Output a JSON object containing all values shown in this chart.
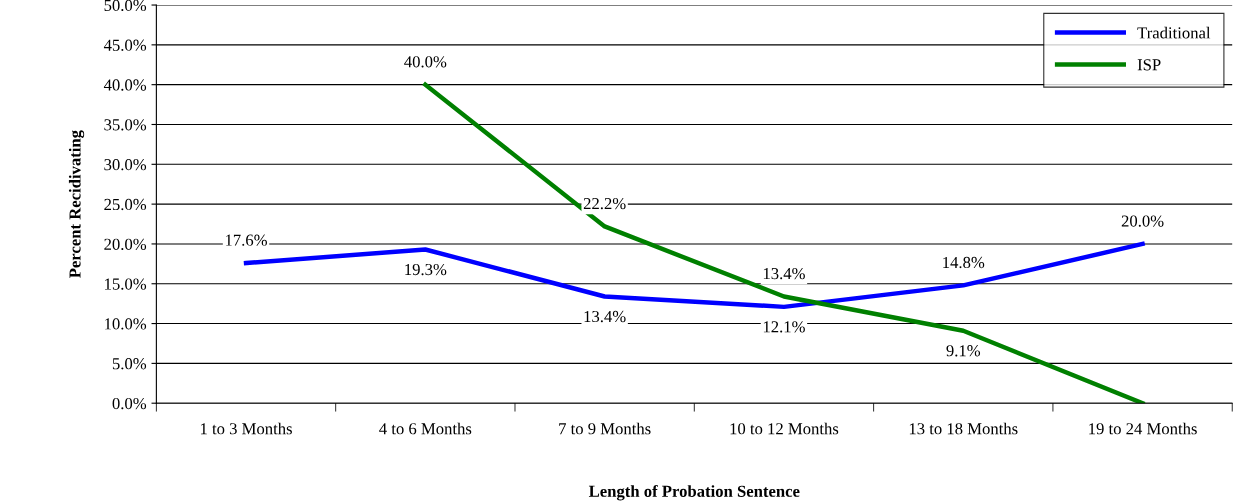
{
  "chart_data": {
    "type": "line",
    "xlabel": "Length of Probation Sentence",
    "ylabel": "Percent Recidivating",
    "categories": [
      "1 to 3 Months",
      "4 to 6 Months",
      "7 to 9 Months",
      "10 to 12 Months",
      "13 to 18 Months",
      "19 to 24 Months"
    ],
    "series": [
      {
        "name": "Traditional",
        "color": "#0000ff",
        "values": [
          17.6,
          19.3,
          13.4,
          12.1,
          14.8,
          20.0
        ],
        "value_labels": [
          "17.6%",
          "19.3%",
          "13.4%",
          "12.1%",
          "14.8%",
          "20.0%"
        ]
      },
      {
        "name": "ISP",
        "color": "#008000",
        "values": [
          null,
          40.0,
          22.2,
          13.4,
          9.1,
          0.0
        ],
        "value_labels": [
          null,
          "40.0%",
          "22.2%",
          "13.4%",
          "9.1%",
          null
        ]
      }
    ],
    "ylim": [
      0,
      50
    ],
    "yticks": [
      {
        "value": 0,
        "label": "0.0%"
      },
      {
        "value": 5,
        "label": "5.0%"
      },
      {
        "value": 10,
        "label": "10.0%"
      },
      {
        "value": 15,
        "label": "15.0%"
      },
      {
        "value": 20,
        "label": "20.0%"
      },
      {
        "value": 25,
        "label": "25.0%"
      },
      {
        "value": 30,
        "label": "30.0%"
      },
      {
        "value": 35,
        "label": "35.0%"
      },
      {
        "value": 40,
        "label": "40.0%"
      },
      {
        "value": 45,
        "label": "45.0%"
      },
      {
        "value": 50,
        "label": "50.0%"
      }
    ],
    "grid": "y",
    "legend": "top right",
    "marker": "none",
    "line_style": "solid"
  }
}
